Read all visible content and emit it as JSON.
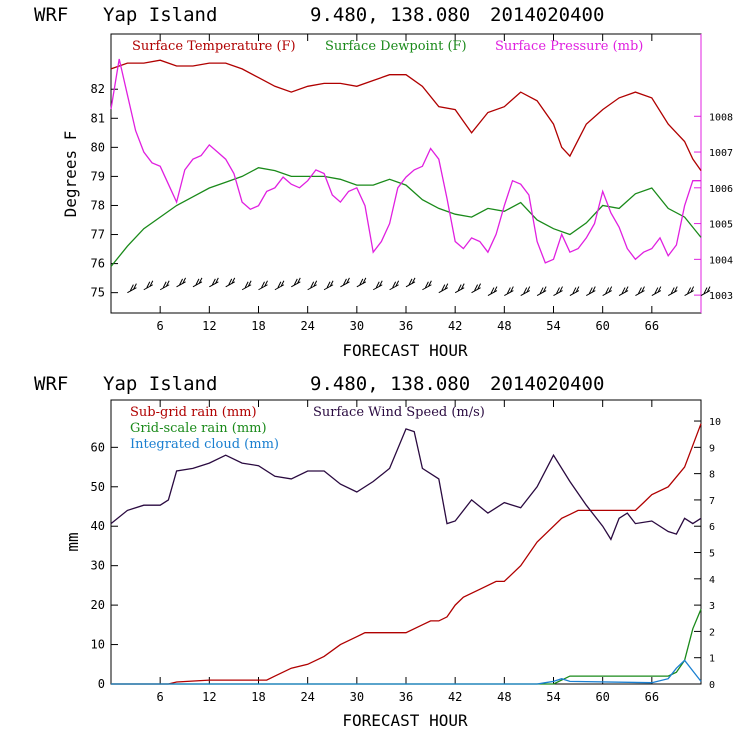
{
  "chart_data": [
    {
      "type": "line",
      "header": {
        "model": "WRF",
        "location": "Yap Island",
        "coords": "9.480, 138.080",
        "init": "2014020400"
      },
      "xlabel": "FORECAST HOUR",
      "ylabel": "Degrees F",
      "xlim": [
        0,
        72
      ],
      "xticks": [
        "6",
        "12",
        "18",
        "24",
        "30",
        "36",
        "42",
        "48",
        "54",
        "60",
        "66"
      ],
      "ylim": [
        74.3,
        83.9
      ],
      "yticks": [
        "75",
        "76",
        "77",
        "78",
        "79",
        "80",
        "81",
        "82"
      ],
      "y2lim": [
        1002.5,
        1010.3
      ],
      "y2ticks": [
        "1003",
        "1004",
        "1005",
        "1006",
        "1007",
        "1008"
      ],
      "colors": {
        "temperature": "#b00000",
        "dewpoint": "#1a8a1a",
        "pressure": "#e020e0",
        "wind": "#000000"
      },
      "series": [
        {
          "name": "Surface Temperature (F)",
          "axis": "left",
          "x": [
            0,
            2,
            4,
            6,
            8,
            10,
            12,
            14,
            16,
            18,
            20,
            22,
            24,
            26,
            28,
            30,
            32,
            34,
            36,
            38,
            40,
            42,
            43,
            44,
            46,
            48,
            50,
            52,
            54,
            55,
            56,
            58,
            60,
            62,
            64,
            66,
            68,
            70,
            71,
            72
          ],
          "values": [
            82.7,
            82.9,
            82.9,
            83.0,
            82.8,
            82.8,
            82.9,
            82.9,
            82.7,
            82.4,
            82.1,
            81.9,
            82.1,
            82.2,
            82.2,
            82.1,
            82.3,
            82.5,
            82.5,
            82.1,
            81.4,
            81.3,
            80.9,
            80.5,
            81.2,
            81.4,
            81.9,
            81.6,
            80.8,
            80.0,
            79.7,
            80.8,
            81.3,
            81.7,
            81.9,
            81.7,
            80.8,
            80.2,
            79.6,
            79.2
          ]
        },
        {
          "name": "Surface Dewpoint (F)",
          "axis": "left",
          "x": [
            0,
            2,
            4,
            6,
            8,
            10,
            12,
            14,
            16,
            18,
            20,
            22,
            24,
            26,
            28,
            30,
            32,
            34,
            36,
            38,
            40,
            42,
            44,
            46,
            48,
            50,
            52,
            54,
            56,
            58,
            60,
            62,
            64,
            66,
            68,
            70,
            72
          ],
          "values": [
            75.9,
            76.6,
            77.2,
            77.6,
            78.0,
            78.3,
            78.6,
            78.8,
            79.0,
            79.3,
            79.2,
            79.0,
            79.0,
            79.0,
            78.9,
            78.7,
            78.7,
            78.9,
            78.7,
            78.2,
            77.9,
            77.7,
            77.6,
            77.9,
            77.8,
            78.1,
            77.5,
            77.2,
            77.0,
            77.4,
            78.0,
            77.9,
            78.4,
            78.6,
            77.9,
            77.6,
            76.9
          ]
        },
        {
          "name": "Surface Pressure (mb)",
          "axis": "right",
          "x": [
            0,
            1,
            2,
            3,
            4,
            5,
            6,
            7,
            8,
            9,
            10,
            11,
            12,
            13,
            14,
            15,
            16,
            17,
            18,
            19,
            20,
            21,
            22,
            23,
            24,
            25,
            26,
            27,
            28,
            29,
            30,
            31,
            32,
            33,
            34,
            35,
            36,
            37,
            38,
            39,
            40,
            41,
            42,
            43,
            44,
            45,
            46,
            47,
            48,
            49,
            50,
            51,
            52,
            53,
            54,
            55,
            56,
            57,
            58,
            59,
            60,
            61,
            62,
            63,
            64,
            65,
            66,
            67,
            68,
            69,
            70,
            71,
            72
          ],
          "values": [
            1008.2,
            1009.6,
            1008.6,
            1007.6,
            1007.0,
            1006.7,
            1006.6,
            1006.1,
            1005.6,
            1006.5,
            1006.8,
            1006.9,
            1007.2,
            1007.0,
            1006.8,
            1006.4,
            1005.6,
            1005.4,
            1005.5,
            1005.9,
            1006.0,
            1006.3,
            1006.1,
            1006.0,
            1006.2,
            1006.5,
            1006.4,
            1005.8,
            1005.6,
            1005.9,
            1006.0,
            1005.5,
            1004.2,
            1004.5,
            1005.0,
            1006.0,
            1006.3,
            1006.5,
            1006.6,
            1007.1,
            1006.8,
            1005.7,
            1004.5,
            1004.3,
            1004.6,
            1004.5,
            1004.2,
            1004.7,
            1005.5,
            1006.2,
            1006.1,
            1005.8,
            1004.5,
            1003.9,
            1004.0,
            1004.7,
            1004.2,
            1004.3,
            1004.6,
            1005.0,
            1005.9,
            1005.3,
            1004.9,
            1004.3,
            1004.0,
            1004.2,
            1004.3,
            1004.6,
            1004.1,
            1004.4,
            1005.5,
            1006.2,
            1006.2
          ]
        },
        {
          "name": "Surface Wind",
          "axis": "left",
          "kind": "wind-barbs",
          "x": [
            2,
            4,
            6,
            8,
            10,
            12,
            14,
            16,
            18,
            20,
            22,
            24,
            26,
            28,
            30,
            32,
            34,
            36,
            38,
            40,
            42,
            44,
            46,
            48,
            50,
            52,
            54,
            56,
            58,
            60,
            62,
            64,
            66,
            68,
            70,
            72
          ],
          "values": [
            75.0,
            75.1,
            75.1,
            75.2,
            75.2,
            75.2,
            75.2,
            75.1,
            75.1,
            75.1,
            75.2,
            75.1,
            75.1,
            75.2,
            75.2,
            75.1,
            75.1,
            75.2,
            75.1,
            75.0,
            75.0,
            75.0,
            74.9,
            74.9,
            74.9,
            74.9,
            74.9,
            74.9,
            74.9,
            74.9,
            74.9,
            74.9,
            74.9,
            74.9,
            74.9,
            74.9
          ]
        }
      ]
    },
    {
      "type": "line",
      "header": {
        "model": "WRF",
        "location": "Yap Island",
        "coords": "9.480, 138.080",
        "init": "2014020400"
      },
      "xlabel": "FORECAST HOUR",
      "ylabel": "mm",
      "xlim": [
        0,
        72
      ],
      "xticks": [
        "6",
        "12",
        "18",
        "24",
        "30",
        "36",
        "42",
        "48",
        "54",
        "60",
        "66"
      ],
      "ylim": [
        0,
        72
      ],
      "yticks": [
        "0",
        "10",
        "20",
        "30",
        "40",
        "50",
        "60"
      ],
      "y2lim": [
        0,
        10.8
      ],
      "y2ticks": [
        "0",
        "1",
        "2",
        "3",
        "4",
        "5",
        "6",
        "7",
        "8",
        "9",
        "10"
      ],
      "colors": {
        "subgrid": "#b00000",
        "gridscale": "#1a8a1a",
        "cloud": "#1a7fd0",
        "wind": "#2a0a40"
      },
      "series": [
        {
          "name": "Sub-grid rain (mm)",
          "axis": "left",
          "x": [
            0,
            7,
            8,
            12,
            19,
            20,
            22,
            24,
            26,
            28,
            30,
            31,
            34,
            36,
            38,
            39,
            40,
            41,
            42,
            43,
            45,
            47,
            48,
            50,
            52,
            55,
            56,
            57,
            58,
            64,
            65,
            66,
            68,
            70,
            72
          ],
          "values": [
            0,
            0,
            0.5,
            1,
            1,
            2,
            4,
            5,
            7,
            10,
            12,
            13,
            13,
            13,
            15,
            16,
            16,
            17,
            20,
            22,
            24,
            26,
            26,
            30,
            36,
            42,
            43,
            44,
            44,
            44,
            46,
            48,
            50,
            55,
            66
          ]
        },
        {
          "name": "Grid-scale rain (mm)",
          "axis": "left",
          "x": [
            0,
            54,
            55,
            56,
            68,
            69,
            70,
            71,
            72
          ],
          "values": [
            0,
            0,
            1,
            2,
            2,
            3,
            6,
            14,
            19
          ]
        },
        {
          "name": "Integrated cloud (mm)",
          "axis": "right",
          "x": [
            0,
            52,
            53,
            54,
            55,
            56,
            66,
            68,
            69,
            70,
            71,
            72
          ],
          "values": [
            0,
            0,
            0.05,
            0.1,
            0.2,
            0.1,
            0.05,
            0.2,
            0.6,
            0.9,
            0.5,
            0.1
          ]
        },
        {
          "name": "Surface Wind Speed (m/s)",
          "axis": "right",
          "x": [
            0,
            2,
            4,
            6,
            7,
            8,
            10,
            12,
            14,
            16,
            18,
            20,
            22,
            24,
            26,
            28,
            30,
            32,
            34,
            36,
            37,
            38,
            40,
            41,
            42,
            44,
            46,
            48,
            50,
            52,
            54,
            56,
            58,
            60,
            61,
            62,
            63,
            64,
            66,
            68,
            69,
            70,
            71,
            72
          ],
          "values": [
            6.1,
            6.6,
            6.8,
            6.8,
            7.0,
            8.1,
            8.2,
            8.4,
            8.7,
            8.4,
            8.3,
            7.9,
            7.8,
            8.1,
            8.1,
            7.6,
            7.3,
            7.7,
            8.2,
            9.7,
            9.6,
            8.2,
            7.8,
            6.1,
            6.2,
            7.0,
            6.5,
            6.9,
            6.7,
            7.5,
            8.7,
            7.7,
            6.8,
            6.0,
            5.5,
            6.3,
            6.5,
            6.1,
            6.2,
            5.8,
            5.7,
            6.3,
            6.1,
            6.3
          ]
        }
      ]
    }
  ]
}
